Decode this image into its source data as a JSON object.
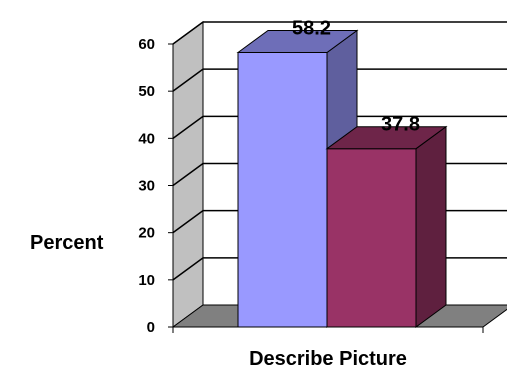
{
  "chart_data": {
    "type": "bar",
    "title": "",
    "xlabel": "Describe Picture",
    "ylabel": "Percent",
    "ylim": [
      0,
      60
    ],
    "yticks": [
      "0",
      "10",
      "20",
      "30",
      "40",
      "50",
      "60"
    ],
    "grid": true,
    "three_d": true,
    "series": [
      {
        "value": 58.2,
        "label": "58.2",
        "color": "#9999ff"
      },
      {
        "value": 37.8,
        "label": "37.8",
        "color": "#993366"
      }
    ],
    "colors": {
      "wall": "#c0c0c0",
      "floor": "#808080",
      "gridline": "#000000"
    }
  }
}
